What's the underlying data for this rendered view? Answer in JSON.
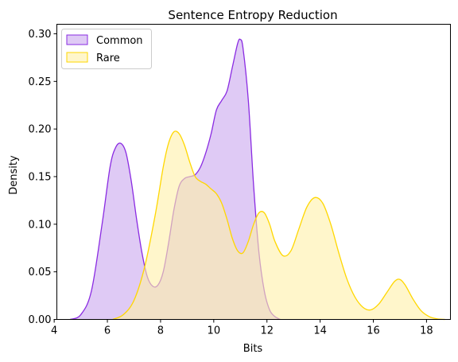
{
  "chart_data": {
    "type": "area",
    "title": "Sentence Entropy Reduction",
    "xlabel": "Bits",
    "ylabel": "Density",
    "xlim": [
      4.1,
      18.9
    ],
    "ylim": [
      0,
      0.31
    ],
    "xticks": [
      4,
      6,
      8,
      10,
      12,
      14,
      16,
      18
    ],
    "yticks": [
      0.0,
      0.05,
      0.1,
      0.15,
      0.2,
      0.25,
      0.3
    ],
    "ytick_labels": [
      "0.00",
      "0.05",
      "0.10",
      "0.15",
      "0.20",
      "0.25",
      "0.30"
    ],
    "grid": false,
    "legend": {
      "placement": "top-left"
    },
    "series": [
      {
        "name": "Common",
        "line_color": "#8a2be2",
        "fill_color": "#c9a6ef",
        "fill_opacity": 0.6,
        "x": [
          4.6,
          5.0,
          5.4,
          5.8,
          6.1,
          6.3,
          6.5,
          6.7,
          6.9,
          7.1,
          7.3,
          7.5,
          7.7,
          7.9,
          8.1,
          8.3,
          8.5,
          8.7,
          8.9,
          9.1,
          9.3,
          9.5,
          9.7,
          9.9,
          10.1,
          10.3,
          10.5,
          10.7,
          10.9,
          11.0,
          11.1,
          11.3,
          11.5,
          11.7,
          11.9,
          12.1,
          12.3,
          12.5
        ],
        "y": [
          0.0,
          0.005,
          0.03,
          0.1,
          0.16,
          0.18,
          0.185,
          0.175,
          0.145,
          0.105,
          0.07,
          0.045,
          0.035,
          0.036,
          0.05,
          0.08,
          0.115,
          0.14,
          0.148,
          0.15,
          0.152,
          0.16,
          0.175,
          0.195,
          0.22,
          0.23,
          0.24,
          0.265,
          0.29,
          0.294,
          0.285,
          0.23,
          0.14,
          0.07,
          0.03,
          0.01,
          0.003,
          0.0
        ]
      },
      {
        "name": "Rare",
        "line_color": "#ffd700",
        "fill_color": "#fff0a8",
        "fill_opacity": 0.6,
        "x": [
          6.2,
          6.6,
          7.0,
          7.4,
          7.8,
          8.1,
          8.3,
          8.5,
          8.7,
          8.9,
          9.1,
          9.3,
          9.5,
          9.7,
          9.9,
          10.1,
          10.3,
          10.5,
          10.7,
          10.9,
          11.1,
          11.3,
          11.5,
          11.7,
          11.9,
          12.1,
          12.3,
          12.6,
          12.9,
          13.2,
          13.5,
          13.8,
          14.1,
          14.4,
          14.7,
          15.0,
          15.3,
          15.6,
          15.9,
          16.2,
          16.5,
          16.8,
          17.0,
          17.2,
          17.5,
          17.8,
          18.1,
          18.4,
          18.7
        ],
        "y": [
          0.0,
          0.005,
          0.02,
          0.055,
          0.11,
          0.16,
          0.185,
          0.197,
          0.195,
          0.183,
          0.165,
          0.15,
          0.145,
          0.142,
          0.137,
          0.132,
          0.122,
          0.105,
          0.085,
          0.072,
          0.07,
          0.082,
          0.1,
          0.112,
          0.112,
          0.1,
          0.082,
          0.067,
          0.072,
          0.095,
          0.118,
          0.128,
          0.122,
          0.1,
          0.07,
          0.043,
          0.024,
          0.013,
          0.01,
          0.016,
          0.028,
          0.04,
          0.042,
          0.036,
          0.021,
          0.009,
          0.003,
          0.0006,
          0.0
        ]
      }
    ]
  }
}
